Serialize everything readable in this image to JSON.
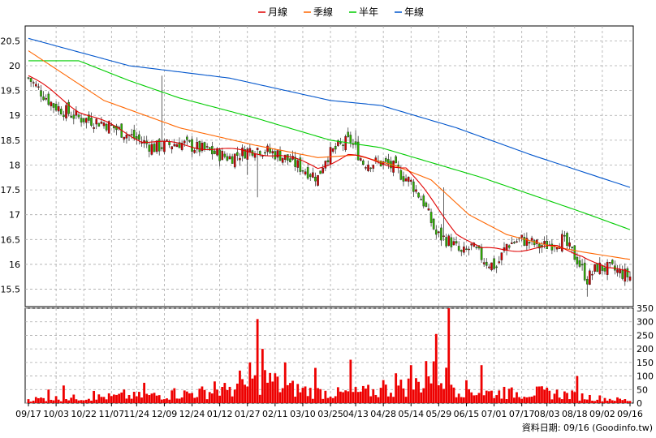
{
  "chart_data": {
    "type": "candlestick",
    "legend": [
      {
        "label": "月線",
        "color": "#e00000"
      },
      {
        "label": "季線",
        "color": "#ff6600"
      },
      {
        "label": "半年",
        "color": "#00cc00"
      },
      {
        "label": "年線",
        "color": "#0055cc"
      }
    ],
    "price_axis": {
      "ylim": [
        15.15,
        20.8
      ],
      "ticks": [
        "20.5",
        "20",
        "19.5",
        "19",
        "18.5",
        "18",
        "17.5",
        "17",
        "16.5",
        "16",
        "15.5"
      ]
    },
    "volume_axis": {
      "ylim": [
        0,
        350
      ],
      "ticks": [
        "350",
        "300",
        "250",
        "200",
        "150",
        "100",
        "50",
        "0"
      ]
    },
    "x_axis": {
      "ticks": [
        "09/17",
        "10/03",
        "10/22",
        "11/07",
        "11/24",
        "12/09",
        "12/24",
        "01/12",
        "01/27",
        "02/11",
        "03/10",
        "03/25",
        "04/13",
        "04/28",
        "05/14",
        "05/29",
        "06/15",
        "07/01",
        "07/17",
        "08/03",
        "08/18",
        "09/02",
        "09/16"
      ],
      "n_days": 240
    },
    "footer": "資料日期: 09/16  (Goodinfo.tw)",
    "price_close_keyframes": [
      [
        0,
        19.75
      ],
      [
        10,
        19.2
      ],
      [
        20,
        18.95
      ],
      [
        30,
        18.85
      ],
      [
        40,
        18.6
      ],
      [
        50,
        18.35
      ],
      [
        60,
        18.45
      ],
      [
        70,
        18.3
      ],
      [
        80,
        18.15
      ],
      [
        90,
        18.35
      ],
      [
        100,
        18.2
      ],
      [
        110,
        17.9
      ],
      [
        115,
        17.75
      ],
      [
        118,
        18.15
      ],
      [
        124,
        18.4
      ],
      [
        128,
        18.5
      ],
      [
        133,
        18.05
      ],
      [
        140,
        18.05
      ],
      [
        145,
        17.95
      ],
      [
        152,
        17.65
      ],
      [
        157,
        17.25
      ],
      [
        162,
        16.6
      ],
      [
        168,
        16.45
      ],
      [
        172,
        16.2
      ],
      [
        176,
        16.35
      ],
      [
        182,
        16.05
      ],
      [
        186,
        15.95
      ],
      [
        190,
        16.4
      ],
      [
        196,
        16.5
      ],
      [
        204,
        16.35
      ],
      [
        212,
        16.5
      ],
      [
        218,
        16.1
      ],
      [
        222,
        15.7
      ],
      [
        226,
        15.95
      ],
      [
        232,
        15.9
      ],
      [
        239,
        15.75
      ]
    ],
    "ma_month": [
      [
        0,
        19.8
      ],
      [
        20,
        19.1
      ],
      [
        45,
        18.5
      ],
      [
        70,
        18.35
      ],
      [
        100,
        18.2
      ],
      [
        115,
        17.95
      ],
      [
        127,
        18.2
      ],
      [
        140,
        18.05
      ],
      [
        150,
        17.95
      ],
      [
        157,
        17.5
      ],
      [
        163,
        17.1
      ],
      [
        170,
        16.65
      ],
      [
        180,
        16.3
      ],
      [
        195,
        16.3
      ],
      [
        210,
        16.35
      ],
      [
        220,
        16.2
      ],
      [
        230,
        15.9
      ],
      [
        239,
        15.85
      ]
    ],
    "ma_season": [
      [
        0,
        20.3
      ],
      [
        15,
        19.8
      ],
      [
        30,
        19.3
      ],
      [
        60,
        18.75
      ],
      [
        90,
        18.4
      ],
      [
        115,
        18.15
      ],
      [
        130,
        18.2
      ],
      [
        145,
        18.0
      ],
      [
        160,
        17.7
      ],
      [
        175,
        17.0
      ],
      [
        190,
        16.6
      ],
      [
        205,
        16.4
      ],
      [
        220,
        16.25
      ],
      [
        239,
        16.1
      ]
    ],
    "ma_half": [
      [
        0,
        20.1
      ],
      [
        20,
        20.1
      ],
      [
        40,
        19.7
      ],
      [
        60,
        19.35
      ],
      [
        90,
        18.95
      ],
      [
        120,
        18.5
      ],
      [
        140,
        18.35
      ],
      [
        160,
        18.05
      ],
      [
        180,
        17.75
      ],
      [
        200,
        17.4
      ],
      [
        220,
        17.05
      ],
      [
        239,
        16.7
      ]
    ],
    "ma_year": [
      [
        0,
        20.55
      ],
      [
        40,
        20.0
      ],
      [
        80,
        19.75
      ],
      [
        120,
        19.3
      ],
      [
        140,
        19.2
      ],
      [
        170,
        18.75
      ],
      [
        200,
        18.2
      ],
      [
        239,
        17.55
      ]
    ],
    "volume_keyframes": [
      [
        0,
        15
      ],
      [
        20,
        20
      ],
      [
        40,
        25
      ],
      [
        55,
        30
      ],
      [
        70,
        40
      ],
      [
        85,
        55
      ],
      [
        94,
        90
      ],
      [
        100,
        60
      ],
      [
        115,
        40
      ],
      [
        125,
        35
      ],
      [
        140,
        45
      ],
      [
        155,
        70
      ],
      [
        163,
        110
      ],
      [
        170,
        60
      ],
      [
        180,
        40
      ],
      [
        190,
        35
      ],
      [
        200,
        40
      ],
      [
        210,
        35
      ],
      [
        225,
        20
      ],
      [
        239,
        10
      ]
    ],
    "volume_spikes": [
      [
        8,
        50
      ],
      [
        14,
        65
      ],
      [
        26,
        45
      ],
      [
        38,
        50
      ],
      [
        46,
        75
      ],
      [
        58,
        55
      ],
      [
        74,
        80
      ],
      [
        80,
        60
      ],
      [
        84,
        120
      ],
      [
        88,
        150
      ],
      [
        91,
        310
      ],
      [
        93,
        200
      ],
      [
        98,
        110
      ],
      [
        102,
        150
      ],
      [
        114,
        130
      ],
      [
        128,
        160
      ],
      [
        141,
        85
      ],
      [
        146,
        110
      ],
      [
        152,
        140
      ],
      [
        158,
        155
      ],
      [
        162,
        255
      ],
      [
        167,
        360
      ],
      [
        180,
        140
      ],
      [
        189,
        60
      ],
      [
        218,
        100
      ]
    ]
  }
}
